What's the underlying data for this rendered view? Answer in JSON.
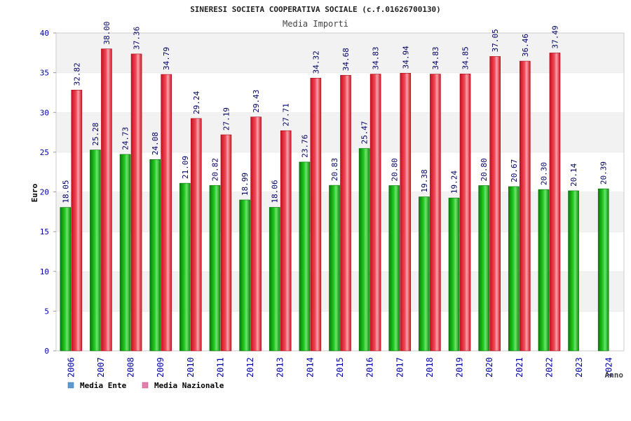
{
  "chart_data": {
    "type": "bar",
    "title": "SINERESI SOCIETA COOPERATIVA SOCIALE (c.f.01626700130)",
    "subtitle": "Media Importi",
    "xlabel": "Anno",
    "ylabel": "Euro",
    "ylim": [
      0,
      40
    ],
    "yticks": [
      "0",
      "5",
      "10",
      "15",
      "20",
      "25",
      "30",
      "35",
      "40"
    ],
    "categories": [
      "2006",
      "2007",
      "2008",
      "2009",
      "2010",
      "2011",
      "2012",
      "2013",
      "2014",
      "2015",
      "2016",
      "2017",
      "2018",
      "2019",
      "2020",
      "2021",
      "2022",
      "2023",
      "2024"
    ],
    "series": [
      {
        "name": "Media Ente",
        "values": [
          18.05,
          25.28,
          24.73,
          24.08,
          21.09,
          20.82,
          18.99,
          18.06,
          23.76,
          20.83,
          25.47,
          20.8,
          19.38,
          19.24,
          20.8,
          20.67,
          20.3,
          20.14,
          20.39
        ],
        "labels": [
          "18.05",
          "25.28",
          "24.73",
          "24.08",
          "21.09",
          "20.82",
          "18.99",
          "18.06",
          "23.76",
          "20.83",
          "25.47",
          "20.80",
          "19.38",
          "19.24",
          "20.80",
          "20.67",
          "20.30",
          "20.14",
          "20.39"
        ]
      },
      {
        "name": "Media Nazionale",
        "values": [
          32.82,
          38.0,
          37.36,
          34.79,
          29.24,
          27.19,
          29.43,
          27.71,
          34.32,
          34.68,
          34.83,
          34.94,
          34.83,
          34.85,
          37.05,
          36.46,
          37.49,
          null,
          null
        ],
        "labels": [
          "32.82",
          "38.00",
          "37.36",
          "34.79",
          "29.24",
          "27.19",
          "29.43",
          "27.71",
          "34.32",
          "34.68",
          "34.83",
          "34.94",
          "34.83",
          "34.85",
          "37.05",
          "36.46",
          "37.49",
          null,
          null
        ]
      }
    ],
    "legend": {
      "placement": "bottom-left",
      "items": [
        {
          "name": "Media Ente",
          "swatch_color": "#5b9bd5"
        },
        {
          "name": "Media Nazionale",
          "swatch_color": "#e67fae"
        }
      ]
    },
    "grid": true,
    "colors": {
      "ente": "#11bb11",
      "nazionale": "#ee2233",
      "axis_text": "#0000aa",
      "value_label": "#000066",
      "band": "#f2f2f2"
    }
  }
}
